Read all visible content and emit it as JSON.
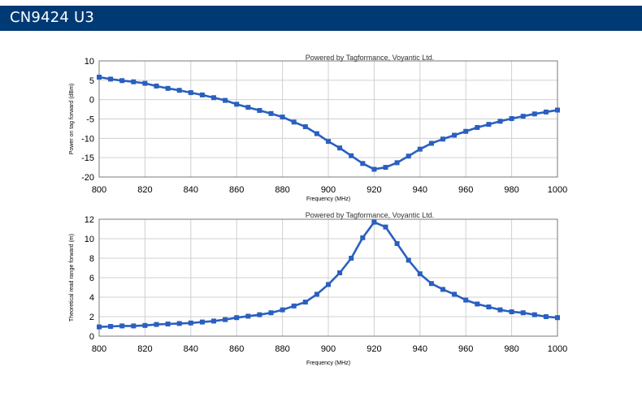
{
  "header": {
    "title": "CN9424 U3"
  },
  "colors": {
    "header_bg": "#003a75",
    "series": "#2a5fbf",
    "grid": "#d0d0d0"
  },
  "chart_data": [
    {
      "type": "line",
      "watermark": "Powered by Tagformance, Voyantic Ltd.",
      "xlabel": "Frequency (MHz)",
      "ylabel": "Power on tag forward (dBm)",
      "xlim": [
        800,
        1000
      ],
      "ylim": [
        -20,
        10
      ],
      "xticks": [
        800,
        820,
        840,
        860,
        880,
        900,
        920,
        940,
        960,
        980,
        1000
      ],
      "yticks": [
        10,
        5,
        0,
        -5,
        -10,
        -15,
        -20
      ],
      "grid": true,
      "series": [
        {
          "x": [
            800,
            805,
            810,
            815,
            820,
            825,
            830,
            835,
            840,
            845,
            850,
            855,
            860,
            865,
            870,
            875,
            880,
            885,
            890,
            895,
            900,
            905,
            910,
            915,
            920,
            925,
            930,
            935,
            940,
            945,
            950,
            955,
            960,
            965,
            970,
            975,
            980,
            985,
            990,
            995,
            1000
          ],
          "y": [
            5.8,
            5.3,
            4.9,
            4.6,
            4.2,
            3.5,
            2.9,
            2.4,
            1.8,
            1.2,
            0.5,
            -0.2,
            -1.2,
            -2.0,
            -2.8,
            -3.6,
            -4.5,
            -5.8,
            -7.0,
            -8.8,
            -10.8,
            -12.5,
            -14.5,
            -16.5,
            -18.0,
            -17.5,
            -16.3,
            -14.6,
            -12.8,
            -11.3,
            -10.2,
            -9.2,
            -8.2,
            -7.2,
            -6.4,
            -5.6,
            -4.9,
            -4.3,
            -3.7,
            -3.2,
            -2.7
          ]
        }
      ]
    },
    {
      "type": "line",
      "watermark": "Powered by Tagformance, Voyantic Ltd.",
      "xlabel": "Frequency (MHz)",
      "ylabel": "Theoretical read range forward (m)",
      "xlim": [
        800,
        1000
      ],
      "ylim": [
        0,
        12
      ],
      "xticks": [
        800,
        820,
        840,
        860,
        880,
        900,
        920,
        940,
        960,
        980,
        1000
      ],
      "yticks": [
        12,
        10,
        8,
        6,
        4,
        2,
        0
      ],
      "grid": true,
      "series": [
        {
          "x": [
            800,
            805,
            810,
            815,
            820,
            825,
            830,
            835,
            840,
            845,
            850,
            855,
            860,
            865,
            870,
            875,
            880,
            885,
            890,
            895,
            900,
            905,
            910,
            915,
            920,
            925,
            930,
            935,
            940,
            945,
            950,
            955,
            960,
            965,
            970,
            975,
            980,
            985,
            990,
            995,
            1000
          ],
          "y": [
            0.95,
            1.0,
            1.05,
            1.05,
            1.1,
            1.2,
            1.25,
            1.3,
            1.35,
            1.45,
            1.55,
            1.7,
            1.9,
            2.05,
            2.2,
            2.4,
            2.7,
            3.1,
            3.5,
            4.3,
            5.3,
            6.5,
            8.0,
            10.1,
            11.7,
            11.2,
            9.5,
            7.8,
            6.4,
            5.4,
            4.8,
            4.3,
            3.7,
            3.3,
            3.0,
            2.7,
            2.5,
            2.4,
            2.2,
            2.0,
            1.9
          ]
        }
      ]
    }
  ]
}
